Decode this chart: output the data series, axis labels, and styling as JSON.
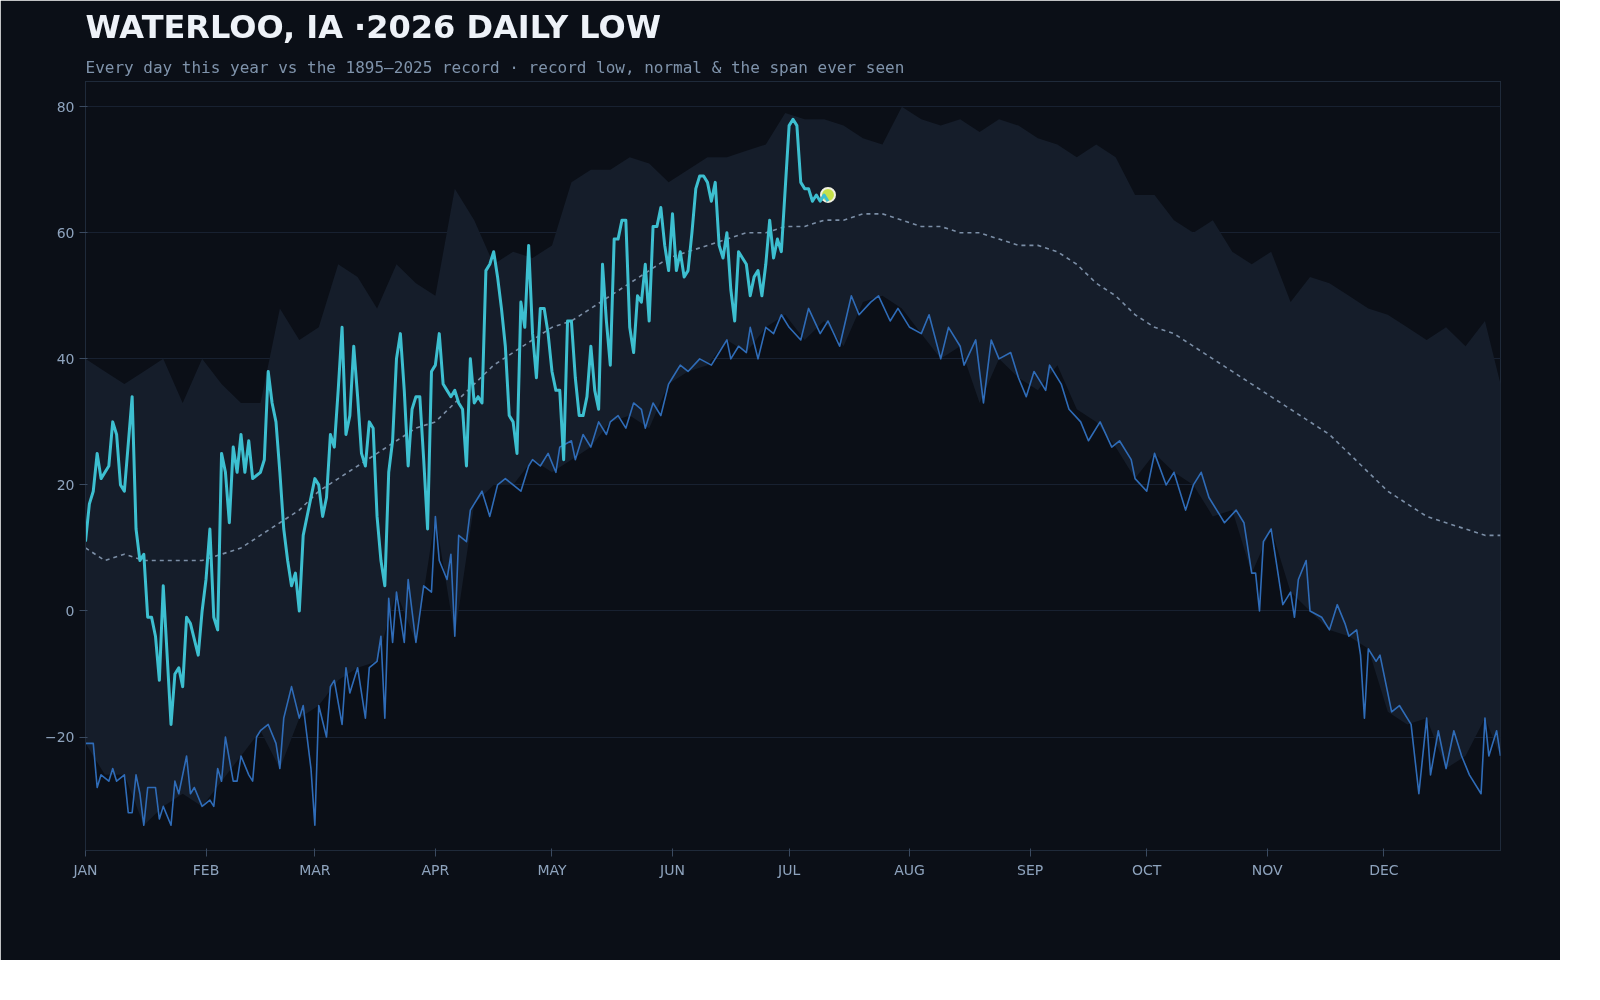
{
  "chart_data": {
    "type": "line",
    "title": "WATERLOO, IA ·2026 DAILY LOW",
    "subtitle": "Every day this year vs the 1895–2025 record · record low, normal & the span ever seen",
    "xlim": [
      "2026-01-01",
      "2026-12-31"
    ],
    "xticks": [
      {
        "value": "2026-01-01",
        "label": "JAN"
      },
      {
        "value": "2026-02-01",
        "label": "FEB"
      },
      {
        "value": "2026-03-01",
        "label": "MAR"
      },
      {
        "value": "2026-04-01",
        "label": "APR"
      },
      {
        "value": "2026-05-01",
        "label": "MAY"
      },
      {
        "value": "2026-06-01",
        "label": "JUN"
      },
      {
        "value": "2026-07-01",
        "label": "JUL"
      },
      {
        "value": "2026-08-01",
        "label": "AUG"
      },
      {
        "value": "2026-09-01",
        "label": "SEP"
      },
      {
        "value": "2026-10-01",
        "label": "OCT"
      },
      {
        "value": "2026-11-01",
        "label": "NOV"
      },
      {
        "value": "2026-12-01",
        "label": "DEC"
      }
    ],
    "ylim": [
      -38,
      84
    ],
    "yticks": [
      {
        "value": -20,
        "label": "−20"
      },
      0,
      20,
      40,
      60,
      80
    ],
    "grid": "y",
    "series": [
      {
        "type": "line",
        "color": "#3dbfd0",
        "line_style": "solid",
        "x": [
          "2026-01-01",
          "2026-01-02",
          "2026-01-03",
          "2026-01-04",
          "2026-01-05",
          "2026-01-07",
          "2026-01-08",
          "2026-01-09",
          "2026-01-10",
          "2026-01-11",
          "2026-01-13",
          "2026-01-14",
          "2026-01-15",
          "2026-01-16",
          "2026-01-17",
          "2026-01-18",
          "2026-01-19",
          "2026-01-20",
          "2026-01-21",
          "2026-01-23",
          "2026-01-24",
          "2026-01-25",
          "2026-01-26",
          "2026-01-27",
          "2026-01-28",
          "2026-01-30",
          "2026-01-31",
          "2026-02-01",
          "2026-02-02",
          "2026-02-03",
          "2026-02-04",
          "2026-02-05",
          "2026-02-06",
          "2026-02-07",
          "2026-02-08",
          "2026-02-09",
          "2026-02-10",
          "2026-02-11",
          "2026-02-12",
          "2026-02-13",
          "2026-02-15",
          "2026-02-16",
          "2026-02-17",
          "2026-02-18",
          "2026-02-19",
          "2026-02-20",
          "2026-02-21",
          "2026-02-22",
          "2026-02-23",
          "2026-02-24",
          "2026-02-25",
          "2026-02-26",
          "2026-02-28",
          "2026-03-01",
          "2026-03-02",
          "2026-03-03",
          "2026-03-04",
          "2026-03-05",
          "2026-03-06",
          "2026-03-07",
          "2026-03-08",
          "2026-03-09",
          "2026-03-10",
          "2026-03-11",
          "2026-03-12",
          "2026-03-13",
          "2026-03-14",
          "2026-03-15",
          "2026-03-16",
          "2026-03-17",
          "2026-03-18",
          "2026-03-19",
          "2026-03-20",
          "2026-03-21",
          "2026-03-22",
          "2026-03-23",
          "2026-03-24",
          "2026-03-25",
          "2026-03-26",
          "2026-03-27",
          "2026-03-28",
          "2026-03-29",
          "2026-03-30",
          "2026-03-31",
          "2026-04-01",
          "2026-04-02",
          "2026-04-03",
          "2026-04-04",
          "2026-04-05",
          "2026-04-06",
          "2026-04-07",
          "2026-04-08",
          "2026-04-09",
          "2026-04-10",
          "2026-04-11",
          "2026-04-12",
          "2026-04-13",
          "2026-04-14",
          "2026-04-15",
          "2026-04-16",
          "2026-04-17",
          "2026-04-18",
          "2026-04-19",
          "2026-04-20",
          "2026-04-21",
          "2026-04-22",
          "2026-04-23",
          "2026-04-24",
          "2026-04-25",
          "2026-04-26",
          "2026-04-27",
          "2026-04-28",
          "2026-04-29",
          "2026-04-30",
          "2026-05-01",
          "2026-05-02",
          "2026-05-03",
          "2026-05-04",
          "2026-05-05",
          "2026-05-06",
          "2026-05-07",
          "2026-05-08",
          "2026-05-09",
          "2026-05-10",
          "2026-05-11",
          "2026-05-12",
          "2026-05-13",
          "2026-05-14",
          "2026-05-15",
          "2026-05-16",
          "2026-05-17",
          "2026-05-18",
          "2026-05-19",
          "2026-05-20",
          "2026-05-21",
          "2026-05-22",
          "2026-05-23",
          "2026-05-24",
          "2026-05-25",
          "2026-05-26",
          "2026-05-27",
          "2026-05-28",
          "2026-05-29",
          "2026-05-30",
          "2026-05-31",
          "2026-06-01",
          "2026-06-02",
          "2026-06-03",
          "2026-06-04",
          "2026-06-05",
          "2026-06-06",
          "2026-06-07",
          "2026-06-08",
          "2026-06-09",
          "2026-06-10",
          "2026-06-11",
          "2026-06-12",
          "2026-06-13",
          "2026-06-14",
          "2026-06-15",
          "2026-06-16",
          "2026-06-17",
          "2026-06-18",
          "2026-06-19",
          "2026-06-20",
          "2026-06-21",
          "2026-06-22",
          "2026-06-23",
          "2026-06-24",
          "2026-06-25",
          "2026-06-26",
          "2026-06-27",
          "2026-06-28",
          "2026-06-29",
          "2026-06-30",
          "2026-07-01",
          "2026-07-02",
          "2026-07-03",
          "2026-07-04",
          "2026-07-05",
          "2026-07-06",
          "2026-07-07",
          "2026-07-08",
          "2026-07-09",
          "2026-07-10",
          "2026-07-11"
        ],
        "values": [
          11,
          17,
          19,
          25,
          21,
          23,
          30,
          28,
          20,
          19,
          34,
          13,
          8,
          9,
          -1,
          -1,
          -4,
          -11,
          4,
          -18,
          -10,
          -9,
          -12,
          -1,
          -2,
          -7,
          0,
          5,
          13,
          -1,
          -3,
          25,
          22,
          14,
          26,
          22,
          28,
          22,
          27,
          21,
          22,
          24,
          38,
          33,
          30,
          22,
          13,
          8,
          4,
          6,
          0,
          12,
          18,
          21,
          20,
          15,
          18,
          28,
          26,
          35,
          45,
          28,
          31,
          42,
          34,
          25,
          23,
          30,
          29,
          15,
          8,
          4,
          22,
          27,
          40,
          44,
          35,
          23,
          32,
          34,
          34,
          24,
          13,
          38,
          39,
          44,
          36,
          35,
          34,
          35,
          33,
          32,
          23,
          40,
          33,
          34,
          33,
          54,
          55,
          57,
          53,
          48,
          42,
          31,
          30,
          25,
          49,
          45,
          58,
          44,
          37,
          48,
          48,
          44,
          38,
          35,
          35,
          24,
          46,
          46,
          37,
          31,
          31,
          34,
          42,
          35,
          32,
          55,
          46,
          39,
          59,
          59,
          62,
          62,
          45,
          41,
          50,
          49,
          55,
          46,
          61,
          61,
          64,
          58,
          54,
          63,
          54,
          57,
          53,
          54,
          60,
          67,
          69,
          69,
          68,
          65,
          68,
          58,
          56,
          60,
          51,
          46,
          57,
          56,
          55,
          50,
          53,
          54,
          50,
          55,
          62,
          56,
          59,
          57,
          67,
          77,
          78,
          77,
          68,
          67,
          67,
          65,
          66,
          65,
          66,
          65
        ]
      },
      {
        "type": "scatter",
        "color": "#c5e04a",
        "marker": "circle",
        "x": [
          "2026-07-11"
        ],
        "values": [
          66
        ]
      },
      {
        "type": "line",
        "color": "#2f6cb8",
        "line_style": "solid",
        "x": [
          "2026-01-01",
          "2026-01-03",
          "2026-01-04",
          "2026-01-05",
          "2026-01-07",
          "2026-01-08",
          "2026-01-09",
          "2026-01-11",
          "2026-01-12",
          "2026-01-13",
          "2026-01-14",
          "2026-01-15",
          "2026-01-16",
          "2026-01-17",
          "2026-01-19",
          "2026-01-20",
          "2026-01-21",
          "2026-01-23",
          "2026-01-24",
          "2026-01-25",
          "2026-01-27",
          "2026-01-28",
          "2026-01-29",
          "2026-01-31",
          "2026-02-02",
          "2026-02-03",
          "2026-02-04",
          "2026-02-05",
          "2026-02-06",
          "2026-02-08",
          "2026-02-09",
          "2026-02-10",
          "2026-02-12",
          "2026-02-13",
          "2026-02-14",
          "2026-02-15",
          "2026-02-17",
          "2026-02-19",
          "2026-02-20",
          "2026-02-21",
          "2026-02-23",
          "2026-02-25",
          "2026-02-26",
          "2026-02-28",
          "2026-03-01",
          "2026-03-02",
          "2026-03-04",
          "2026-03-05",
          "2026-03-06",
          "2026-03-08",
          "2026-03-09",
          "2026-03-10",
          "2026-03-12",
          "2026-03-14",
          "2026-03-15",
          "2026-03-17",
          "2026-03-18",
          "2026-03-19",
          "2026-03-20",
          "2026-03-21",
          "2026-03-22",
          "2026-03-24",
          "2026-03-25",
          "2026-03-27",
          "2026-03-29",
          "2026-03-31",
          "2026-04-01",
          "2026-04-02",
          "2026-04-04",
          "2026-04-05",
          "2026-04-06",
          "2026-04-07",
          "2026-04-09",
          "2026-04-10",
          "2026-04-11",
          "2026-04-13",
          "2026-04-15",
          "2026-04-17",
          "2026-04-19",
          "2026-04-21",
          "2026-04-23",
          "2026-04-25",
          "2026-04-26",
          "2026-04-28",
          "2026-04-30",
          "2026-05-02",
          "2026-05-03",
          "2026-05-06",
          "2026-05-07",
          "2026-05-09",
          "2026-05-11",
          "2026-05-13",
          "2026-05-15",
          "2026-05-16",
          "2026-05-18",
          "2026-05-20",
          "2026-05-22",
          "2026-05-24",
          "2026-05-25",
          "2026-05-27",
          "2026-05-29",
          "2026-05-31",
          "2026-06-01",
          "2026-06-03",
          "2026-06-05",
          "2026-06-08",
          "2026-06-11",
          "2026-06-13",
          "2026-06-15",
          "2026-06-16",
          "2026-06-18",
          "2026-06-20",
          "2026-06-21",
          "2026-06-23",
          "2026-06-25",
          "2026-06-27",
          "2026-06-29",
          "2026-07-01",
          "2026-07-04",
          "2026-07-06",
          "2026-07-09",
          "2026-07-11",
          "2026-07-14",
          "2026-07-17",
          "2026-07-19",
          "2026-07-22",
          "2026-07-24",
          "2026-07-27",
          "2026-07-29",
          "2026-08-01",
          "2026-08-04",
          "2026-08-06",
          "2026-08-09",
          "2026-08-11",
          "2026-08-14",
          "2026-08-15",
          "2026-08-18",
          "2026-08-20",
          "2026-08-22",
          "2026-08-24",
          "2026-08-27",
          "2026-08-29",
          "2026-08-31",
          "2026-09-02",
          "2026-09-05",
          "2026-09-06",
          "2026-09-09",
          "2026-09-11",
          "2026-09-14",
          "2026-09-16",
          "2026-09-19",
          "2026-09-22",
          "2026-09-24",
          "2026-09-27",
          "2026-09-28",
          "2026-10-01",
          "2026-10-03",
          "2026-10-06",
          "2026-10-08",
          "2026-10-11",
          "2026-10-13",
          "2026-10-15",
          "2026-10-17",
          "2026-10-20",
          "2026-10-21",
          "2026-10-24",
          "2026-10-26",
          "2026-10-28",
          "2026-10-29",
          "2026-10-30",
          "2026-10-31",
          "2026-11-02",
          "2026-11-03",
          "2026-11-05",
          "2026-11-07",
          "2026-11-08",
          "2026-11-09",
          "2026-11-11",
          "2026-11-12",
          "2026-11-15",
          "2026-11-17",
          "2026-11-19",
          "2026-11-21",
          "2026-11-22",
          "2026-11-24",
          "2026-11-25",
          "2026-11-26",
          "2026-11-27",
          "2026-11-29",
          "2026-11-30",
          "2026-12-03",
          "2026-12-05",
          "2026-12-08",
          "2026-12-10",
          "2026-12-12",
          "2026-12-13",
          "2026-12-15",
          "2026-12-17",
          "2026-12-19",
          "2026-12-21",
          "2026-12-23",
          "2026-12-26",
          "2026-12-27",
          "2026-12-28",
          "2026-12-30",
          "2026-12-31"
        ],
        "values": [
          -21,
          -21,
          -28,
          -26,
          -27,
          -25,
          -27,
          -26,
          -32,
          -32,
          -26,
          -29,
          -34,
          -28,
          -28,
          -33,
          -31,
          -34,
          -27,
          -29,
          -23,
          -29,
          -28,
          -31,
          -30,
          -31,
          -25,
          -27,
          -20,
          -27,
          -27,
          -23,
          -26,
          -27,
          -20,
          -19,
          -18,
          -21,
          -25,
          -17,
          -12,
          -17,
          -15,
          -25,
          -34,
          -15,
          -20,
          -12,
          -11,
          -18,
          -9,
          -13,
          -9,
          -17,
          -9,
          -8,
          -4,
          -17,
          2,
          -5,
          3,
          -5,
          5,
          -5,
          4,
          3,
          15,
          8,
          5,
          9,
          -4,
          12,
          11,
          16,
          17,
          19,
          15,
          20,
          21,
          20,
          19,
          23,
          24,
          23,
          25,
          22,
          26,
          27,
          24,
          28,
          26,
          30,
          28,
          30,
          31,
          29,
          33,
          32,
          29,
          33,
          31,
          36,
          37,
          39,
          38,
          40,
          39,
          41,
          43,
          40,
          42,
          41,
          45,
          40,
          45,
          44,
          47,
          45,
          43,
          48,
          44,
          46,
          42,
          50,
          47,
          49,
          50,
          46,
          48,
          45,
          44,
          47,
          40,
          45,
          42,
          39,
          43,
          33,
          43,
          40,
          41,
          37,
          34,
          38,
          35,
          39,
          36,
          32,
          30,
          27,
          30,
          26,
          27,
          24,
          21,
          19,
          25,
          20,
          22,
          16,
          20,
          22,
          18,
          15,
          14,
          16,
          14,
          6,
          6,
          0,
          11,
          13,
          9,
          1,
          3,
          -1,
          5,
          8,
          0,
          -1,
          -3,
          1,
          -2,
          -4,
          -3,
          -7,
          -17,
          -6,
          -8,
          -7,
          -16,
          -15,
          -18,
          -29,
          -17,
          -26,
          -19,
          -25,
          -19,
          -23,
          -26,
          -29,
          -17,
          -23,
          -19,
          -23
        ]
      },
      {
        "type": "line",
        "color": "#7b8ea6",
        "line_style": "dashed",
        "x": [
          "2026-01-01",
          "2026-01-06",
          "2026-01-11",
          "2026-01-16",
          "2026-01-21",
          "2026-01-26",
          "2026-01-31",
          "2026-02-05",
          "2026-02-10",
          "2026-02-15",
          "2026-02-20",
          "2026-02-25",
          "2026-03-02",
          "2026-03-07",
          "2026-03-12",
          "2026-03-17",
          "2026-03-22",
          "2026-03-27",
          "2026-04-01",
          "2026-04-06",
          "2026-04-11",
          "2026-04-16",
          "2026-04-21",
          "2026-04-26",
          "2026-05-01",
          "2026-05-06",
          "2026-05-11",
          "2026-05-16",
          "2026-05-21",
          "2026-05-26",
          "2026-05-31",
          "2026-06-05",
          "2026-06-10",
          "2026-06-15",
          "2026-06-20",
          "2026-06-25",
          "2026-06-30",
          "2026-07-05",
          "2026-07-10",
          "2026-07-15",
          "2026-07-20",
          "2026-07-25",
          "2026-07-30",
          "2026-08-04",
          "2026-08-09",
          "2026-08-14",
          "2026-08-19",
          "2026-08-24",
          "2026-08-29",
          "2026-09-03",
          "2026-09-08",
          "2026-09-13",
          "2026-09-18",
          "2026-09-23",
          "2026-09-28",
          "2026-10-03",
          "2026-10-08",
          "2026-10-13",
          "2026-10-18",
          "2026-10-23",
          "2026-10-28",
          "2026-11-02",
          "2026-11-07",
          "2026-11-12",
          "2026-11-17",
          "2026-11-22",
          "2026-11-27",
          "2026-12-02",
          "2026-12-07",
          "2026-12-12",
          "2026-12-17",
          "2026-12-22",
          "2026-12-27",
          "2026-12-31"
        ],
        "values": [
          10,
          8,
          9,
          8,
          8,
          8,
          8,
          9,
          10,
          12,
          14,
          16,
          19,
          21,
          23,
          25,
          27,
          29,
          30,
          33,
          36,
          39,
          41,
          43,
          45,
          46,
          48,
          50,
          52,
          54,
          56,
          57,
          58,
          59,
          60,
          60,
          61,
          61,
          62,
          62,
          63,
          63,
          62,
          61,
          61,
          60,
          60,
          59,
          58,
          58,
          57,
          55,
          52,
          50,
          47,
          45,
          44,
          42,
          40,
          38,
          36,
          34,
          32,
          30,
          28,
          25,
          22,
          19,
          17,
          15,
          14,
          13,
          12,
          12
        ],
        "lower": [
          -21,
          -26,
          -26,
          -34,
          -31,
          -29,
          -31,
          -27,
          -23,
          -19,
          -25,
          -17,
          -15,
          -11,
          -9,
          -8,
          3,
          -5,
          15,
          -4,
          17,
          20,
          20,
          24,
          22,
          24,
          26,
          30,
          31,
          29,
          36,
          38,
          39,
          43,
          41,
          45,
          47,
          43,
          46,
          42,
          49,
          50,
          48,
          44,
          40,
          42,
          33,
          40,
          37,
          35,
          39,
          32,
          30,
          26,
          21,
          25,
          22,
          20,
          15,
          16,
          6,
          13,
          3,
          0,
          -3,
          -4,
          -6,
          -16,
          -18,
          -17,
          -25,
          -23,
          -17,
          -23
        ],
        "upper": [
          40,
          38,
          36,
          38,
          40,
          33,
          40,
          36,
          33,
          33,
          48,
          43,
          45,
          55,
          53,
          48,
          55,
          52,
          50,
          67,
          62,
          55,
          57,
          56,
          58,
          68,
          70,
          70,
          72,
          71,
          68,
          70,
          72,
          72,
          73,
          74,
          79,
          78,
          78,
          77,
          75,
          74,
          80,
          78,
          77,
          78,
          76,
          78,
          77,
          75,
          74,
          72,
          74,
          72,
          66,
          66,
          62,
          60,
          62,
          57,
          55,
          57,
          49,
          53,
          52,
          50,
          48,
          47,
          45,
          43,
          45,
          42,
          46,
          36
        ]
      }
    ]
  }
}
